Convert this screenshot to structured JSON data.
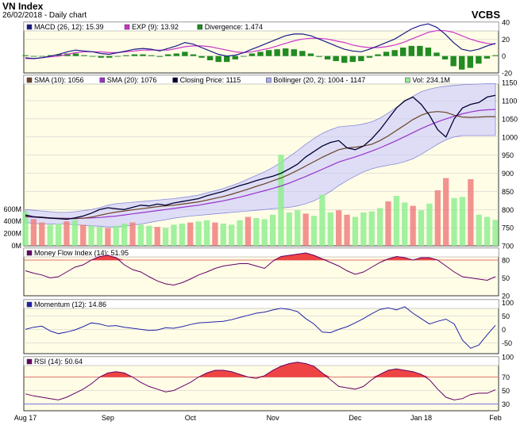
{
  "header": {
    "title": "VN Index",
    "subtitle": "26/02/2018 - Daily chart",
    "brand": "VCBS"
  },
  "colors": {
    "panel_bg": "#fffde6",
    "grid": "#c8c8c8",
    "macd": "#1a1a8a",
    "exp": "#cc33cc",
    "divergence_pos": "#228b22",
    "divergence_neg": "#008000",
    "sma10": "#6b4226",
    "sma20": "#9933cc",
    "closing": "#000033",
    "bollinger_fill": "#c8c8ff",
    "bollinger_line": "#8888dd",
    "vol_up": "#90ee90",
    "vol_down": "#f08080",
    "mfi_line": "#660066",
    "mfi_fill": "#ee4444",
    "mfi_ref": "#e05050",
    "momentum": "#2222aa",
    "rsi": "#660066",
    "rsi_fill": "#ee4444",
    "rsi_ref_low": "#5555dd"
  },
  "chart_data": [
    {
      "type": "line",
      "panel": "macd",
      "legend": [
        {
          "label": "MACD (26, 12): 15.39",
          "color": "#1a1a8a"
        },
        {
          "label": "EXP (9): 13.92",
          "color": "#cc33cc"
        },
        {
          "label": "Divergence: 1.474",
          "color": "#228b22"
        }
      ],
      "ylim": [
        -20,
        40
      ],
      "yticks": [
        40,
        20,
        0,
        -20
      ],
      "series": [
        {
          "name": "MACD (26, 12)",
          "values": [
            -2,
            -3,
            -2,
            0,
            2,
            5,
            7,
            6,
            5,
            3,
            2,
            4,
            6,
            8,
            9,
            8,
            6,
            9,
            12,
            16,
            14,
            10,
            6,
            2,
            0,
            1,
            4,
            8,
            12,
            16,
            20,
            24,
            26,
            26,
            24,
            20,
            16,
            12,
            8,
            6,
            5,
            8,
            12,
            16,
            20,
            26,
            32,
            36,
            38,
            34,
            26,
            16,
            8,
            6,
            8,
            12,
            15
          ]
        },
        {
          "name": "EXP (9)",
          "values": [
            -3,
            -3,
            -2,
            -1,
            0,
            2,
            4,
            5,
            5,
            5,
            4,
            4,
            5,
            6,
            7,
            7,
            7,
            7,
            9,
            11,
            12,
            12,
            11,
            9,
            7,
            5,
            4,
            5,
            7,
            9,
            12,
            15,
            18,
            20,
            21,
            21,
            20,
            18,
            16,
            13,
            11,
            10,
            10,
            11,
            13,
            16,
            20,
            24,
            28,
            30,
            30,
            28,
            24,
            20,
            17,
            15,
            14
          ]
        },
        {
          "name": "Divergence",
          "values": [
            1,
            0,
            0,
            1,
            2,
            3,
            3,
            1,
            0,
            -2,
            -2,
            0,
            1,
            2,
            2,
            1,
            -1,
            2,
            3,
            5,
            2,
            -2,
            -5,
            -7,
            -7,
            -4,
            0,
            3,
            5,
            7,
            8,
            9,
            8,
            6,
            3,
            -1,
            -4,
            -6,
            -8,
            -7,
            -6,
            -2,
            2,
            5,
            7,
            10,
            12,
            12,
            10,
            4,
            -4,
            -12,
            -16,
            -14,
            -9,
            -3,
            1
          ]
        }
      ]
    },
    {
      "type": "line",
      "panel": "price",
      "legend": [
        {
          "label": "SMA (10): 1056",
          "color": "#6b4226"
        },
        {
          "label": "SMA (20): 1076",
          "color": "#9933cc"
        },
        {
          "label": "Closing Price: 1115",
          "color": "#000033"
        },
        {
          "label": "Bollinger (20, 2): 1004 - 1147",
          "color": "#aaaaee"
        },
        {
          "label": "Vol: 234.1M",
          "color": "#90ee90"
        }
      ],
      "ylim": [
        700,
        1170
      ],
      "yticks": [
        1150,
        1100,
        1050,
        1000,
        950,
        900,
        850,
        800,
        750,
        700
      ],
      "vol_ylim": [
        0,
        900
      ],
      "vol_ticks": [
        "600M",
        "400M",
        "200M",
        "0M"
      ],
      "vol_tick_values": [
        600,
        400,
        200,
        0
      ],
      "xlabels": [
        "Aug 17",
        "Sep",
        "Oct",
        "Nov",
        "Dec",
        "Jan 18",
        "Feb"
      ],
      "xlabel_index": [
        0,
        10,
        20,
        30,
        40,
        48,
        57
      ],
      "series": [
        {
          "name": "Closing Price",
          "values": [
            785,
            780,
            778,
            776,
            775,
            773,
            777,
            782,
            790,
            800,
            805,
            802,
            800,
            806,
            812,
            810,
            815,
            812,
            818,
            822,
            826,
            830,
            838,
            844,
            850,
            858,
            866,
            872,
            880,
            886,
            892,
            900,
            912,
            925,
            945,
            960,
            975,
            985,
            990,
            970,
            965,
            975,
            995,
            1020,
            1050,
            1080,
            1100,
            1110,
            1090,
            1060,
            1020,
            1000,
            1050,
            1080,
            1090,
            1095,
            1110,
            1115
          ]
        },
        {
          "name": "SMA (10)",
          "values": [
            782,
            780,
            779,
            777,
            776,
            775,
            775,
            776,
            779,
            784,
            789,
            793,
            796,
            799,
            802,
            805,
            808,
            810,
            812,
            815,
            818,
            821,
            826,
            831,
            836,
            842,
            849,
            856,
            864,
            871,
            879,
            887,
            897,
            908,
            920,
            932,
            944,
            955,
            965,
            970,
            972,
            975,
            980,
            990,
            1003,
            1018,
            1033,
            1048,
            1060,
            1068,
            1070,
            1068,
            1060,
            1055,
            1054,
            1055,
            1056,
            1056
          ]
        },
        {
          "name": "SMA (20)",
          "values": [
            780,
            779,
            778,
            777,
            776,
            776,
            775,
            776,
            777,
            778,
            780,
            782,
            785,
            788,
            791,
            794,
            797,
            800,
            803,
            806,
            809,
            812,
            816,
            820,
            824,
            829,
            834,
            840,
            846,
            852,
            858,
            865,
            873,
            882,
            891,
            901,
            911,
            921,
            931,
            938,
            945,
            953,
            961,
            970,
            980,
            990,
            1001,
            1012,
            1023,
            1033,
            1042,
            1050,
            1057,
            1064,
            1069,
            1073,
            1075,
            1076
          ]
        },
        {
          "name": "Bollinger upper",
          "values": [
            800,
            798,
            796,
            794,
            792,
            792,
            794,
            797,
            800,
            805,
            812,
            816,
            818,
            820,
            822,
            824,
            826,
            828,
            830,
            833,
            836,
            840,
            846,
            852,
            858,
            866,
            874,
            884,
            894,
            904,
            916,
            930,
            946,
            962,
            980,
            996,
            1010,
            1020,
            1028,
            1030,
            1032,
            1036,
            1042,
            1052,
            1066,
            1082,
            1098,
            1112,
            1125,
            1132,
            1137,
            1140,
            1142,
            1144,
            1145,
            1146,
            1147,
            1147
          ]
        },
        {
          "name": "Bollinger lower",
          "values": [
            764,
            762,
            760,
            760,
            760,
            760,
            758,
            756,
            755,
            754,
            752,
            752,
            754,
            757,
            760,
            764,
            768,
            772,
            776,
            779,
            782,
            784,
            786,
            788,
            790,
            792,
            794,
            796,
            798,
            800,
            802,
            804,
            806,
            810,
            816,
            824,
            836,
            850,
            866,
            880,
            892,
            904,
            912,
            918,
            922,
            926,
            932,
            940,
            952,
            966,
            980,
            992,
            1000,
            1004,
            1004,
            1004,
            1004,
            1004
          ]
        },
        {
          "name": "Vol",
          "values": [
            310,
            240,
            210,
            190,
            200,
            220,
            230,
            190,
            180,
            170,
            160,
            180,
            200,
            210,
            190,
            180,
            170,
            160,
            190,
            200,
            210,
            220,
            230,
            210,
            200,
            190,
            230,
            260,
            250,
            240,
            280,
            820,
            300,
            320,
            290,
            270,
            460,
            300,
            320,
            280,
            260,
            300,
            310,
            340,
            400,
            450,
            390,
            360,
            320,
            380,
            500,
            610,
            430,
            440,
            600,
            280,
            260,
            234
          ]
        },
        {
          "name": "Vol direction",
          "values": [
            1,
            0,
            0,
            1,
            1,
            0,
            1,
            0,
            1,
            1,
            0,
            1,
            1,
            0,
            1,
            1,
            0,
            1,
            1,
            1,
            0,
            1,
            1,
            0,
            1,
            1,
            1,
            0,
            1,
            1,
            1,
            1,
            1,
            1,
            0,
            1,
            1,
            1,
            0,
            0,
            1,
            1,
            1,
            1,
            0,
            1,
            1,
            0,
            1,
            1,
            0,
            0,
            1,
            1,
            0,
            1,
            1,
            1
          ]
        }
      ]
    },
    {
      "type": "line",
      "panel": "mfi",
      "legend": [
        {
          "label": "Money Flow Index (14): 51.95",
          "color": "#660066"
        }
      ],
      "ylim": [
        20,
        100
      ],
      "yticks": [
        80,
        50,
        20
      ],
      "ref_high": 80,
      "series": [
        {
          "name": "Money Flow Index (14)",
          "values": [
            62,
            58,
            55,
            50,
            52,
            60,
            68,
            72,
            80,
            86,
            88,
            84,
            72,
            64,
            60,
            52,
            45,
            40,
            38,
            42,
            48,
            55,
            60,
            66,
            70,
            72,
            74,
            74,
            70,
            66,
            78,
            86,
            88,
            90,
            92,
            88,
            82,
            76,
            70,
            62,
            56,
            60,
            68,
            76,
            82,
            86,
            84,
            80,
            84,
            84,
            80,
            70,
            60,
            52,
            50,
            48,
            46,
            52
          ]
        }
      ]
    },
    {
      "type": "line",
      "panel": "momentum",
      "legend": [
        {
          "label": "Momentum (12): 14.86",
          "color": "#2222aa"
        }
      ],
      "ylim": [
        -90,
        110
      ],
      "yticks": [
        100,
        50,
        0,
        -50
      ],
      "series": [
        {
          "name": "Momentum (12)",
          "values": [
            0,
            8,
            12,
            -6,
            -16,
            -10,
            -2,
            10,
            24,
            20,
            12,
            14,
            8,
            4,
            0,
            -4,
            -2,
            6,
            4,
            10,
            18,
            24,
            26,
            28,
            30,
            36,
            44,
            52,
            60,
            64,
            72,
            78,
            74,
            66,
            40,
            20,
            -10,
            -12,
            0,
            10,
            24,
            40,
            58,
            74,
            80,
            72,
            84,
            60,
            40,
            20,
            30,
            38,
            20,
            -40,
            -70,
            -58,
            -20,
            15
          ]
        }
      ]
    },
    {
      "type": "line",
      "panel": "rsi",
      "legend": [
        {
          "label": "RSI (14): 50.64",
          "color": "#660066"
        }
      ],
      "ylim": [
        20,
        100
      ],
      "yticks": [
        100,
        70,
        50,
        30
      ],
      "ref_high": 70,
      "ref_low": 30,
      "series": [
        {
          "name": "RSI (14)",
          "values": [
            45,
            42,
            40,
            38,
            36,
            40,
            46,
            52,
            60,
            70,
            76,
            78,
            76,
            70,
            62,
            56,
            52,
            48,
            50,
            56,
            62,
            70,
            76,
            80,
            80,
            78,
            74,
            70,
            68,
            72,
            80,
            86,
            90,
            92,
            90,
            86,
            76,
            66,
            56,
            54,
            52,
            56,
            66,
            74,
            80,
            82,
            80,
            78,
            74,
            66,
            52,
            40,
            36,
            38,
            44,
            46,
            46,
            51
          ]
        }
      ]
    }
  ]
}
